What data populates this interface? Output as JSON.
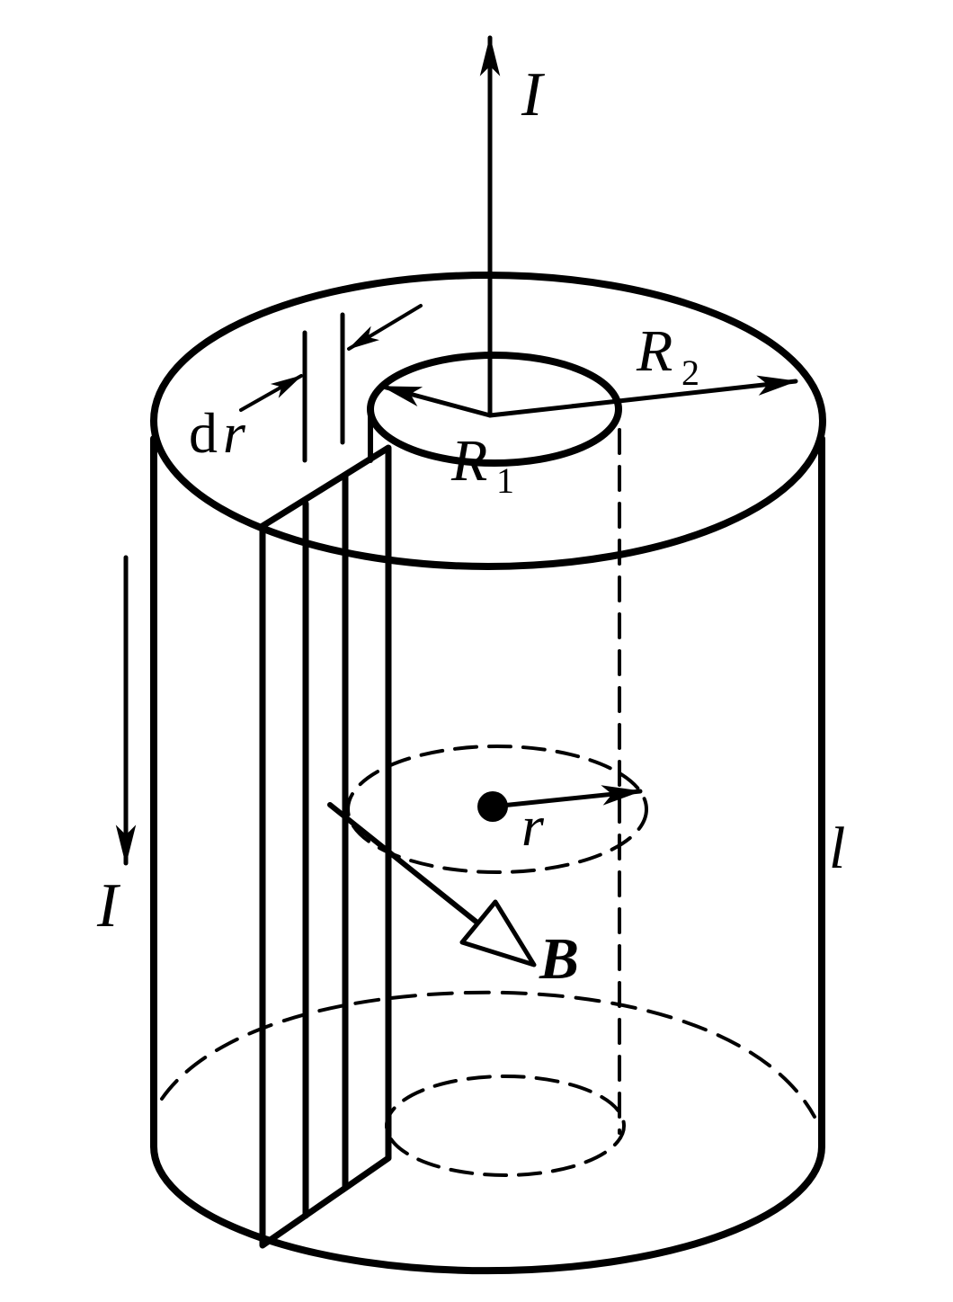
{
  "labels": {
    "current_top": "I",
    "current_bottom": "I",
    "outer_radius": "R",
    "outer_radius_sub": "2",
    "inner_radius": "R",
    "inner_radius_sub": "1",
    "strip_width_d": "d",
    "strip_width_r": "r",
    "field_radius": "r",
    "field": "B",
    "length": "l"
  },
  "colors": {
    "stroke": "#000000",
    "background": "#ffffff"
  }
}
